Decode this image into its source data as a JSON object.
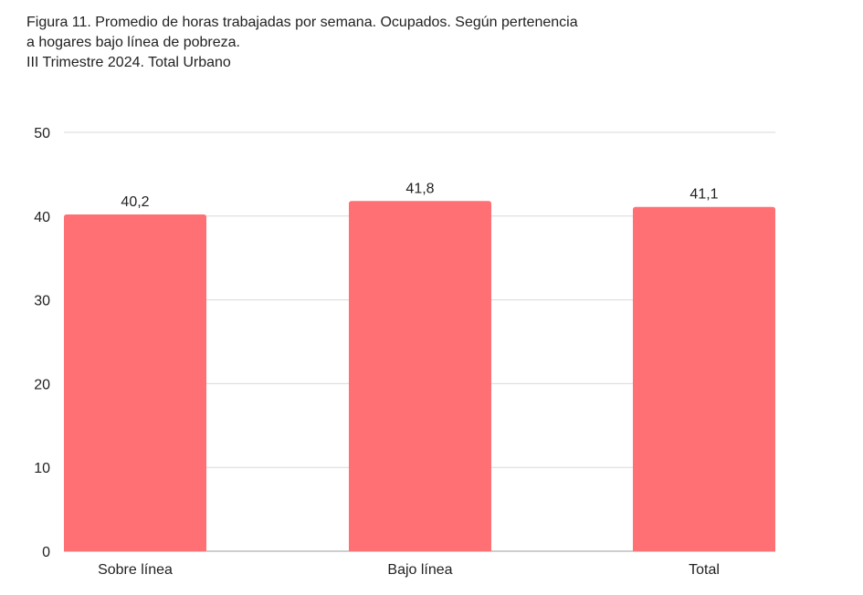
{
  "chart_data": {
    "type": "bar",
    "title_lines": [
      "Figura 11. Promedio de horas trabajadas por semana. Ocupados. Según pertenencia",
      "a hogares bajo línea de pobreza.",
      "III Trimestre 2024. Total Urbano"
    ],
    "categories": [
      "Sobre línea",
      "Bajo línea",
      "Total"
    ],
    "values": [
      40.2,
      41.8,
      41.1
    ],
    "data_labels": [
      "40,2",
      "41,8",
      "41,1"
    ],
    "ylim": [
      0,
      50
    ],
    "yticks": [
      0,
      10,
      20,
      30,
      40,
      50
    ],
    "ytick_labels": [
      "0",
      "10",
      "20",
      "30",
      "40",
      "50"
    ],
    "xlabel": "",
    "ylabel": "",
    "grid": true,
    "bar_color": "#ff7074",
    "grid_color": "#d9d9d9",
    "axis_color": "#bdbdbd"
  }
}
